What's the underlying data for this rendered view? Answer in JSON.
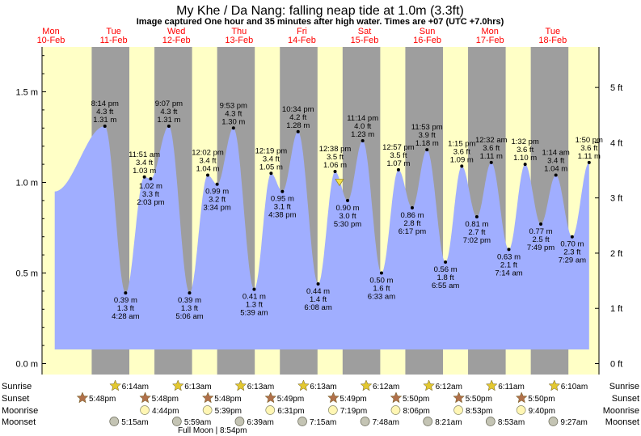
{
  "header": {
    "title": "My Khe / Da Nang: falling  neap tide at 1.0m (3.3ft)",
    "subtitle": "Image captured One hour and 35 minutes after high water. Times are +07 (UTC +7.0hrs)"
  },
  "days": [
    {
      "dow": "Mon",
      "date": "10-Feb"
    },
    {
      "dow": "Tue",
      "date": "11-Feb"
    },
    {
      "dow": "Wed",
      "date": "12-Feb"
    },
    {
      "dow": "Thu",
      "date": "13-Feb"
    },
    {
      "dow": "Fri",
      "date": "14-Feb"
    },
    {
      "dow": "Sat",
      "date": "15-Feb"
    },
    {
      "dow": "Sun",
      "date": "16-Feb"
    },
    {
      "dow": "Mon",
      "date": "17-Feb"
    },
    {
      "dow": "Tue",
      "date": "18-Feb"
    }
  ],
  "colors": {
    "day_band": "#ffffc6",
    "night_band": "#9e9e9e",
    "water": "#a0aeff",
    "date_text": "#ff0000",
    "sun_star": "#e3c830",
    "sunset_star": "#b0704a",
    "moon": "#fff6b4",
    "moonset": "#c4c4b4"
  },
  "chart_data": {
    "type": "area",
    "title": "My Khe / Da Nang: falling  neap tide at 1.0m (3.3ft)",
    "left_axis_ticks": [
      "0.0 m",
      "0.5 m",
      "1.0 m",
      "1.5 m"
    ],
    "left_axis_values": [
      0.0,
      0.5,
      1.0,
      1.5
    ],
    "right_axis_ticks": [
      "0 ft",
      "1 ft",
      "2 ft",
      "3 ft",
      "4 ft",
      "5 ft"
    ],
    "right_axis_values": [
      0,
      1,
      2,
      3,
      4,
      5
    ],
    "ylim_m": [
      0.0,
      1.7
    ],
    "extremes": [
      {
        "day": 0.86,
        "time": "8:14 pm",
        "ft": "4.3 ft",
        "m": 1.31,
        "m_label": "1.31 m",
        "type": "high"
      },
      {
        "day": 1.19,
        "time": "4:28 am",
        "ft": "1.3 ft",
        "m": 0.39,
        "m_label": "0.39 m",
        "type": "low"
      },
      {
        "day": 1.49,
        "time": "11:51 am",
        "ft": "3.4 ft",
        "m": 1.03,
        "m_label": "1.03 m",
        "type": "high"
      },
      {
        "day": 1.59,
        "time": "2:03 pm",
        "ft": "3.3 ft",
        "m": 1.02,
        "m_label": "1.02 m",
        "type": "low"
      },
      {
        "day": 1.88,
        "time": "9:07 pm",
        "ft": "4.3 ft",
        "m": 1.31,
        "m_label": "1.31 m",
        "type": "high"
      },
      {
        "day": 2.21,
        "time": "5:06 am",
        "ft": "1.3 ft",
        "m": 0.39,
        "m_label": "0.39 m",
        "type": "low"
      },
      {
        "day": 2.5,
        "time": "12:02 pm",
        "ft": "3.4 ft",
        "m": 1.04,
        "m_label": "1.04 m",
        "type": "high"
      },
      {
        "day": 2.65,
        "time": "3:34 pm",
        "ft": "3.2 ft",
        "m": 0.99,
        "m_label": "0.99 m",
        "type": "low"
      },
      {
        "day": 2.91,
        "time": "9:53 pm",
        "ft": "4.3 ft",
        "m": 1.3,
        "m_label": "1.30 m",
        "type": "high"
      },
      {
        "day": 3.24,
        "time": "5:39 am",
        "ft": "1.3 ft",
        "m": 0.41,
        "m_label": "0.41 m",
        "type": "low"
      },
      {
        "day": 3.51,
        "time": "12:19 pm",
        "ft": "3.4 ft",
        "m": 1.05,
        "m_label": "1.05 m",
        "type": "high"
      },
      {
        "day": 3.69,
        "time": "4:38 pm",
        "ft": "3.1 ft",
        "m": 0.95,
        "m_label": "0.95 m",
        "type": "low"
      },
      {
        "day": 3.94,
        "time": "10:34 pm",
        "ft": "4.2 ft",
        "m": 1.28,
        "m_label": "1.28 m",
        "type": "high"
      },
      {
        "day": 4.26,
        "time": "6:08 am",
        "ft": "1.4 ft",
        "m": 0.44,
        "m_label": "0.44 m",
        "type": "low"
      },
      {
        "day": 4.53,
        "time": "12:38 pm",
        "ft": "3.5 ft",
        "m": 1.06,
        "m_label": "1.06 m",
        "type": "high"
      },
      {
        "day": 4.73,
        "time": "5:30 pm",
        "ft": "3.0 ft",
        "m": 0.9,
        "m_label": "0.90 m",
        "type": "low"
      },
      {
        "day": 4.97,
        "time": "11:14 pm",
        "ft": "4.0 ft",
        "m": 1.23,
        "m_label": "1.23 m",
        "type": "high"
      },
      {
        "day": 5.27,
        "time": "6:33 am",
        "ft": "1.6 ft",
        "m": 0.5,
        "m_label": "0.50 m",
        "type": "low"
      },
      {
        "day": 5.54,
        "time": "12:57 pm",
        "ft": "3.5 ft",
        "m": 1.07,
        "m_label": "1.07 m",
        "type": "high"
      },
      {
        "day": 5.76,
        "time": "6:17 pm",
        "ft": "2.8 ft",
        "m": 0.86,
        "m_label": "0.86 m",
        "type": "low"
      },
      {
        "day": 5.995,
        "time": "11:53 pm",
        "ft": "3.9 ft",
        "m": 1.18,
        "m_label": "1.18 m",
        "type": "high"
      },
      {
        "day": 6.29,
        "time": "6:55 am",
        "ft": "1.8 ft",
        "m": 0.56,
        "m_label": "0.56 m",
        "type": "low"
      },
      {
        "day": 6.55,
        "time": "1:15 pm",
        "ft": "3.6 ft",
        "m": 1.09,
        "m_label": "1.09 m",
        "type": "high"
      },
      {
        "day": 6.79,
        "time": "7:02 pm",
        "ft": "2.7 ft",
        "m": 0.81,
        "m_label": "0.81 m",
        "type": "low"
      },
      {
        "day": 7.02,
        "time": "12:32 am",
        "ft": "3.6 ft",
        "m": 1.11,
        "m_label": "1.11 m",
        "type": "high"
      },
      {
        "day": 7.3,
        "time": "7:14 am",
        "ft": "2.1 ft",
        "m": 0.63,
        "m_label": "0.63 m",
        "type": "low"
      },
      {
        "day": 7.56,
        "time": "1:32 pm",
        "ft": "3.6 ft",
        "m": 1.1,
        "m_label": "1.10 m",
        "type": "high"
      },
      {
        "day": 7.81,
        "time": "7:49 pm",
        "ft": "2.5 ft",
        "m": 0.77,
        "m_label": "0.77 m",
        "type": "low"
      },
      {
        "day": 8.05,
        "time": "1:14 am",
        "ft": "3.4 ft",
        "m": 1.04,
        "m_label": "1.04 m",
        "type": "high"
      },
      {
        "day": 8.31,
        "time": "7:29 am",
        "ft": "2.3 ft",
        "m": 0.7,
        "m_label": "0.70 m",
        "type": "low"
      },
      {
        "day": 8.58,
        "time": "1:50 pm",
        "ft": "3.6 ft",
        "m": 1.11,
        "m_label": "1.11 m",
        "type": "high"
      }
    ],
    "night_bands": [
      [
        0.65,
        1.25
      ],
      [
        1.65,
        2.25
      ],
      [
        2.65,
        3.25
      ],
      [
        3.65,
        4.25
      ],
      [
        4.65,
        5.25
      ],
      [
        5.65,
        6.25
      ],
      [
        6.65,
        7.25
      ],
      [
        7.65,
        8.25
      ]
    ],
    "current_marker": {
      "day": 4.6,
      "m": 1.0
    },
    "row_labels": [
      "Sunrise",
      "Sunset",
      "Moonrise",
      "Moonset"
    ],
    "sunrise": [
      {
        "day": 1.0,
        "label": "6:14am"
      },
      {
        "day": 2.0,
        "label": "6:13am"
      },
      {
        "day": 3.0,
        "label": "6:13am"
      },
      {
        "day": 4.0,
        "label": "6:13am"
      },
      {
        "day": 5.0,
        "label": "6:12am"
      },
      {
        "day": 6.0,
        "label": "6:12am"
      },
      {
        "day": 7.0,
        "label": "6:11am"
      },
      {
        "day": 8.0,
        "label": "6:10am"
      }
    ],
    "sunset": [
      {
        "day": 0.0,
        "label": "5:48pm"
      },
      {
        "day": 1.0,
        "label": "5:48pm"
      },
      {
        "day": 2.0,
        "label": "5:48pm"
      },
      {
        "day": 3.0,
        "label": "5:49pm"
      },
      {
        "day": 4.0,
        "label": "5:49pm"
      },
      {
        "day": 5.0,
        "label": "5:50pm"
      },
      {
        "day": 6.0,
        "label": "5:50pm"
      },
      {
        "day": 7.0,
        "label": "5:50pm"
      }
    ],
    "moonrise": [
      {
        "day": 0.98,
        "label": "4:44pm"
      },
      {
        "day": 1.98,
        "label": "5:39pm"
      },
      {
        "day": 2.98,
        "label": "6:31pm"
      },
      {
        "day": 3.98,
        "label": "7:19pm"
      },
      {
        "day": 4.98,
        "label": "8:06pm"
      },
      {
        "day": 5.98,
        "label": "8:53pm"
      },
      {
        "day": 6.98,
        "label": "9:40pm"
      }
    ],
    "moonset": [
      {
        "day": 0.57,
        "label": "5:15am"
      },
      {
        "day": 1.57,
        "label": "5:59am"
      },
      {
        "day": 2.57,
        "label": "6:39am"
      },
      {
        "day": 3.57,
        "label": "7:15am"
      },
      {
        "day": 4.57,
        "label": "7:48am"
      },
      {
        "day": 5.57,
        "label": "8:21am"
      },
      {
        "day": 6.57,
        "label": "8:53am"
      },
      {
        "day": 7.57,
        "label": "9:27am"
      }
    ],
    "full_moon": {
      "label": "Full Moon | 8:54pm"
    }
  }
}
